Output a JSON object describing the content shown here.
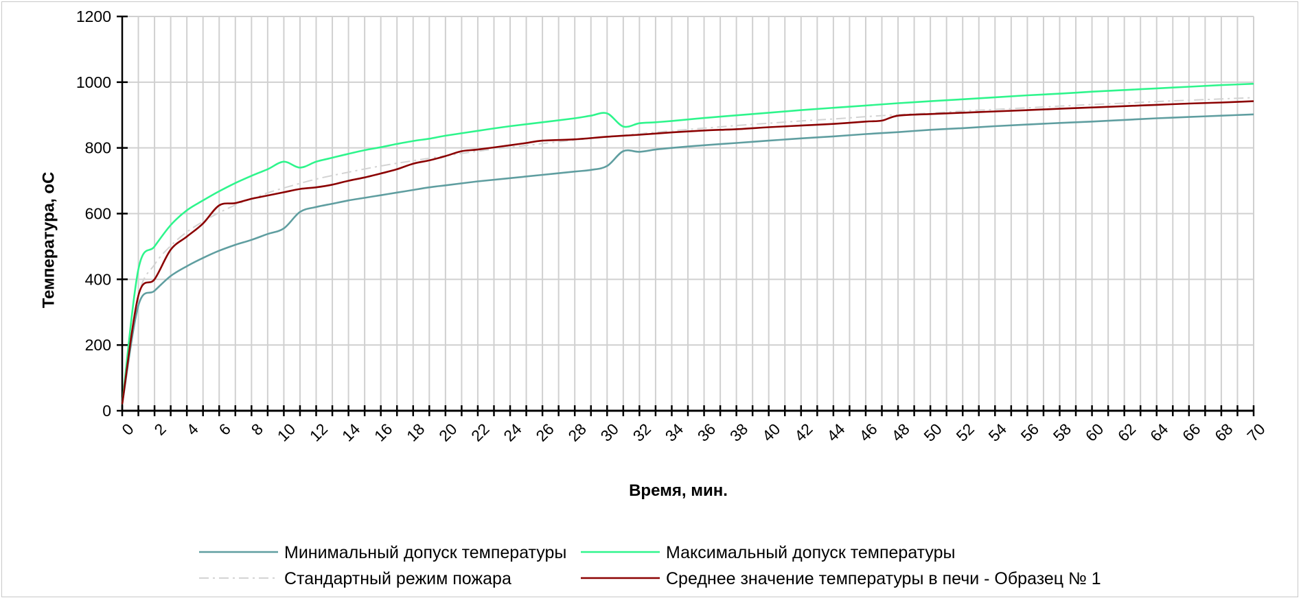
{
  "chart_data": {
    "type": "line",
    "title": "",
    "xlabel": "Время, мин.",
    "ylabel": "Температура, oC",
    "xlim": [
      0,
      70
    ],
    "ylim": [
      0,
      1200
    ],
    "x_ticks": [
      0,
      2,
      4,
      6,
      8,
      10,
      12,
      14,
      16,
      18,
      20,
      22,
      24,
      26,
      28,
      30,
      32,
      34,
      36,
      38,
      40,
      42,
      44,
      46,
      48,
      50,
      52,
      54,
      56,
      58,
      60,
      62,
      64,
      66,
      68,
      70
    ],
    "y_ticks": [
      0,
      200,
      400,
      600,
      800,
      1000,
      1200
    ],
    "grid": "vertical lines every 1 min, horizontal lines every 200",
    "legend_placement": "bottom",
    "series": [
      {
        "name": "Минимальный допуск температуры",
        "color": "#5f9ea0",
        "style": "solid",
        "x": [
          0,
          1,
          2,
          3,
          4,
          5,
          6,
          7,
          8,
          9,
          10,
          11,
          12,
          13,
          14,
          15,
          16,
          17,
          18,
          19,
          20,
          22,
          24,
          26,
          28,
          29,
          30,
          31,
          32,
          33,
          34,
          36,
          38,
          40,
          42,
          44,
          46,
          48,
          50,
          52,
          54,
          56,
          58,
          60,
          62,
          64,
          66,
          68,
          70
        ],
        "values": [
          20,
          320,
          365,
          410,
          440,
          465,
          487,
          505,
          520,
          538,
          555,
          605,
          620,
          630,
          640,
          648,
          656,
          664,
          672,
          680,
          686,
          698,
          708,
          718,
          728,
          733,
          745,
          790,
          788,
          795,
          800,
          808,
          815,
          822,
          829,
          835,
          842,
          848,
          855,
          860,
          866,
          871,
          876,
          880,
          885,
          890,
          894,
          898,
          902
        ]
      },
      {
        "name": "Максимальный допуск температуры",
        "color": "#2ef58c",
        "style": "solid",
        "x": [
          0,
          1,
          2,
          3,
          4,
          5,
          6,
          7,
          8,
          9,
          10,
          11,
          12,
          13,
          14,
          15,
          16,
          17,
          18,
          19,
          20,
          22,
          24,
          26,
          28,
          29,
          30,
          31,
          32,
          33,
          34,
          36,
          38,
          40,
          42,
          44,
          46,
          48,
          50,
          52,
          54,
          56,
          58,
          60,
          62,
          64,
          66,
          68,
          70
        ],
        "values": [
          20,
          430,
          500,
          565,
          610,
          640,
          668,
          693,
          715,
          735,
          758,
          740,
          758,
          770,
          782,
          793,
          802,
          812,
          821,
          828,
          837,
          852,
          866,
          878,
          890,
          898,
          905,
          865,
          875,
          878,
          882,
          891,
          899,
          907,
          915,
          922,
          929,
          936,
          942,
          948,
          954,
          960,
          965,
          971,
          976,
          981,
          986,
          991,
          995
        ]
      },
      {
        "name": "Стандартный режим пожара",
        "color": "#d3d3d3",
        "style": "dashdot",
        "x": [
          0,
          1,
          2,
          3,
          4,
          5,
          6,
          7,
          8,
          9,
          10,
          12,
          14,
          16,
          18,
          20,
          22,
          24,
          26,
          28,
          30,
          32,
          34,
          36,
          38,
          40,
          42,
          44,
          46,
          48,
          50,
          52,
          54,
          56,
          58,
          60,
          62,
          64,
          66,
          68,
          70
        ],
        "values": [
          20,
          349,
          445,
          502,
          544,
          576,
          603,
          626,
          645,
          663,
          678,
          705,
          726,
          745,
          761,
          776,
          790,
          802,
          813,
          824,
          834,
          843,
          852,
          860,
          868,
          875,
          882,
          888,
          895,
          901,
          906,
          912,
          917,
          922,
          927,
          932,
          936,
          941,
          945,
          949,
          953
        ]
      },
      {
        "name": "Среднее значение температуры в печи - Образец № 1",
        "color": "#8b0000",
        "style": "solid",
        "x": [
          0,
          1,
          2,
          3,
          4,
          5,
          6,
          7,
          8,
          9,
          10,
          11,
          12,
          13,
          14,
          15,
          16,
          17,
          18,
          19,
          20,
          21,
          22,
          24,
          25,
          26,
          28,
          30,
          32,
          34,
          36,
          38,
          40,
          42,
          44,
          46,
          47,
          48,
          50,
          52,
          54,
          56,
          58,
          60,
          62,
          64,
          66,
          68,
          70
        ],
        "values": [
          20,
          350,
          400,
          490,
          530,
          570,
          625,
          632,
          645,
          655,
          665,
          675,
          680,
          688,
          700,
          710,
          722,
          735,
          752,
          762,
          775,
          790,
          795,
          808,
          815,
          822,
          826,
          834,
          840,
          847,
          853,
          857,
          863,
          868,
          873,
          880,
          883,
          898,
          903,
          907,
          911,
          915,
          919,
          923,
          927,
          931,
          935,
          938,
          942
        ]
      }
    ]
  }
}
